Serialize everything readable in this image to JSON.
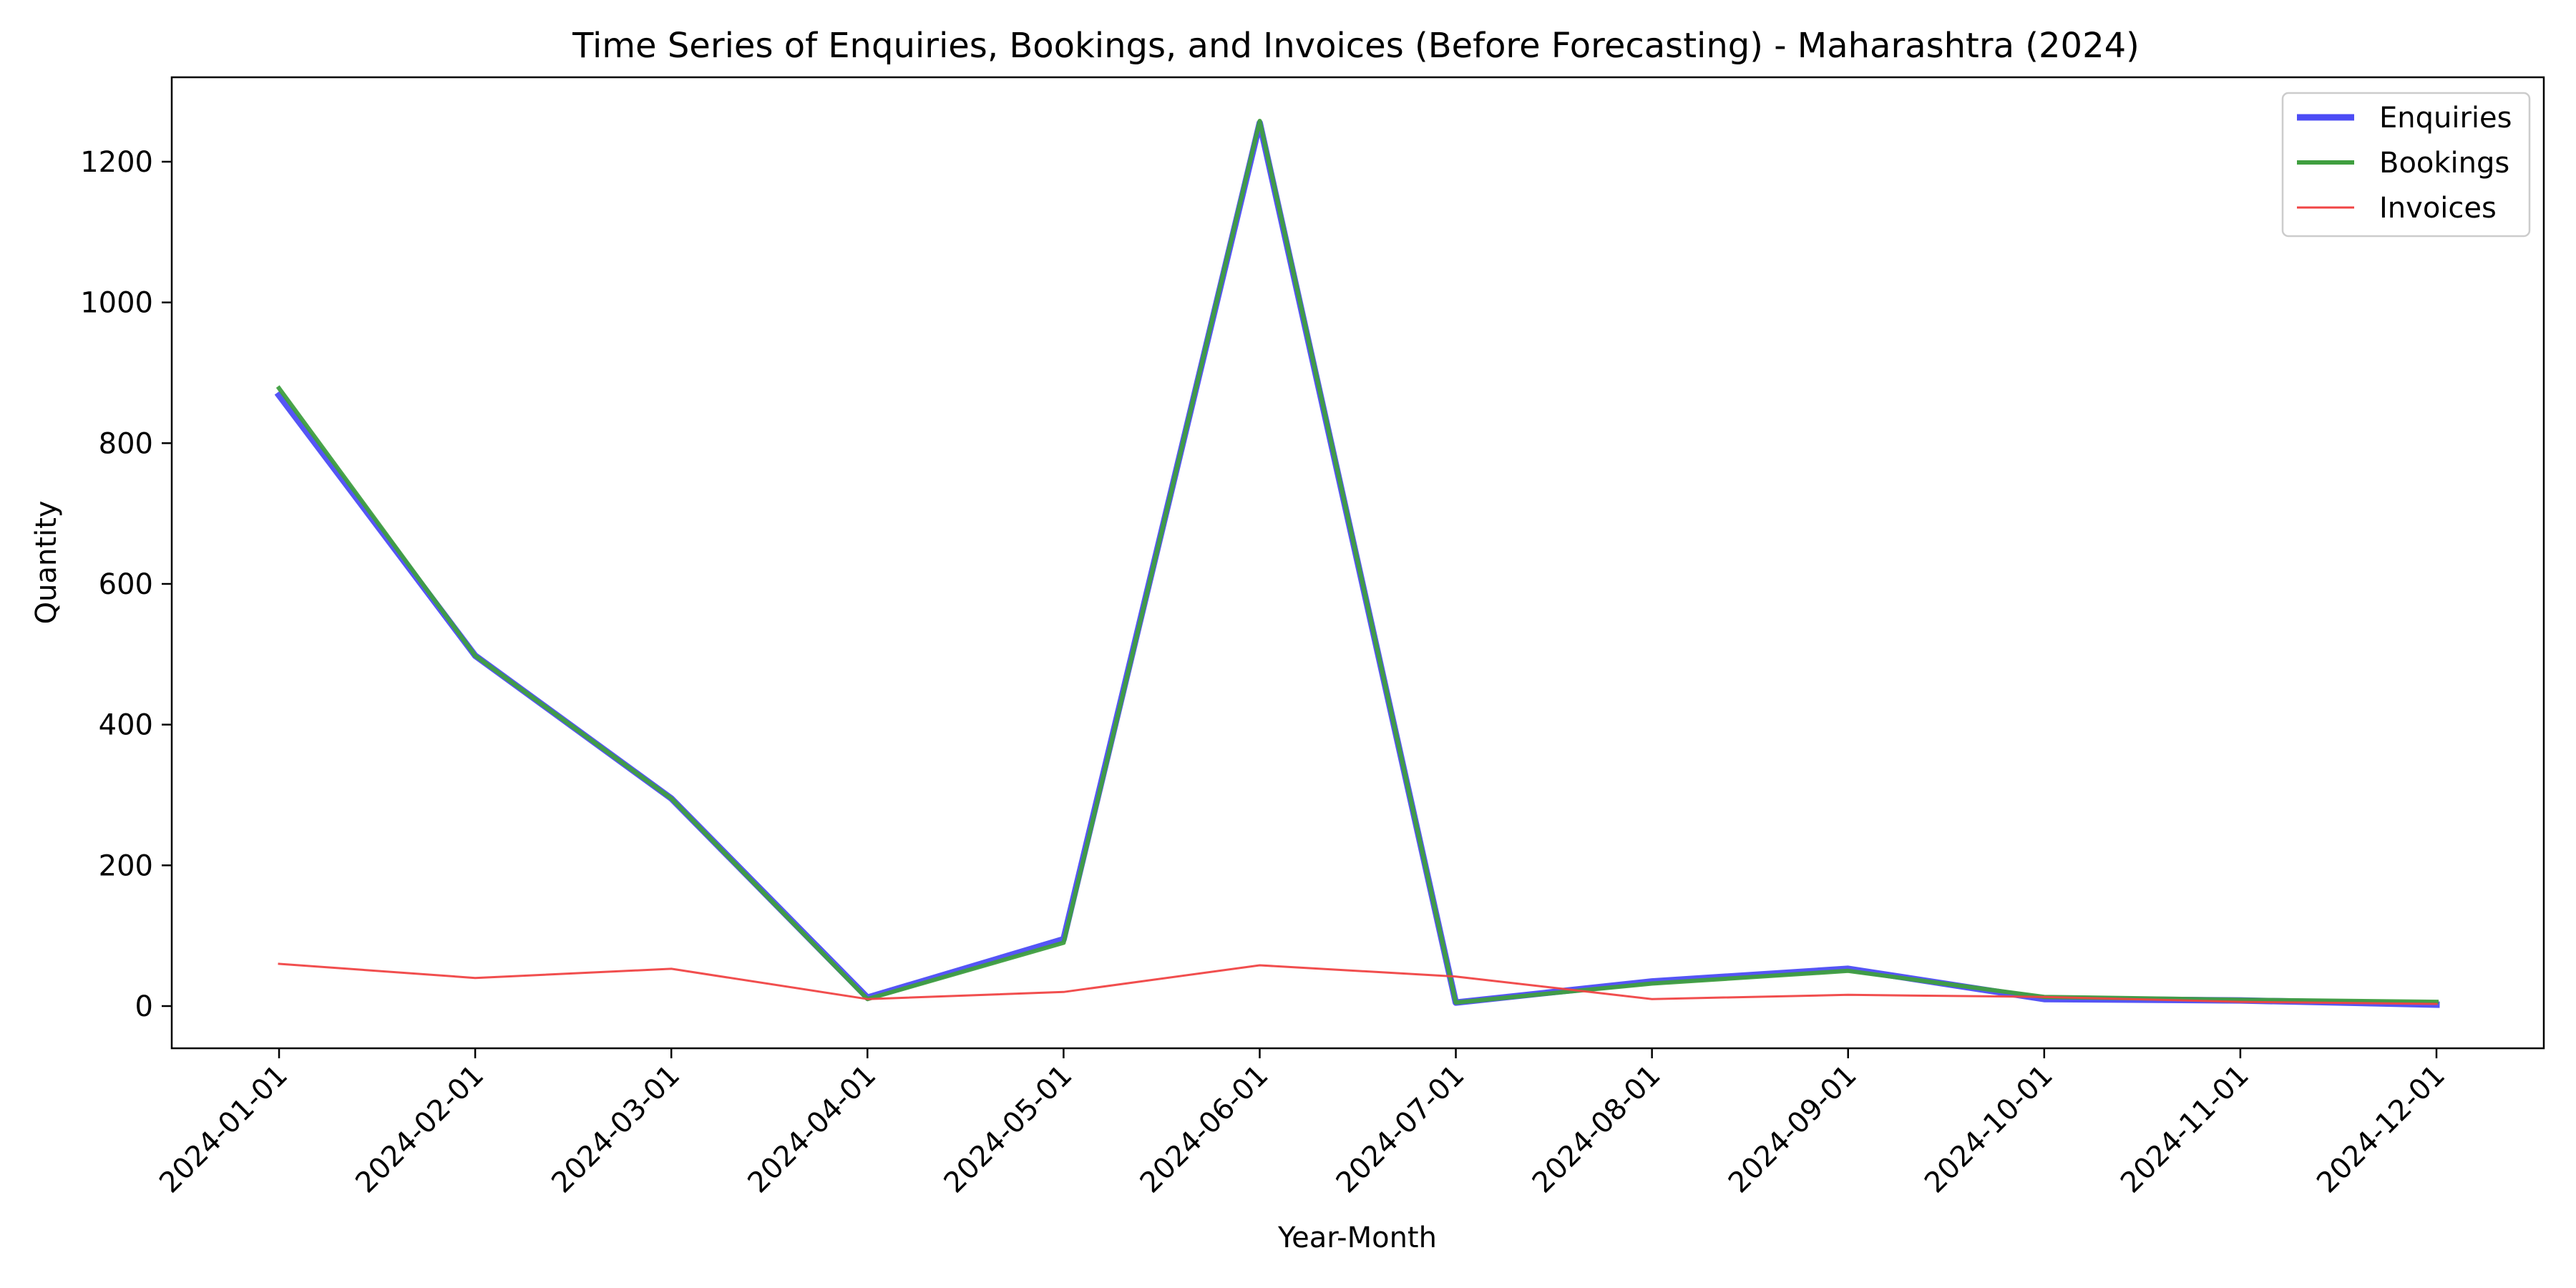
{
  "chart_data": {
    "type": "line",
    "title": "Time Series of Enquiries, Bookings, and Invoices (Before Forecasting) - Maharashtra (2024)",
    "xlabel": "Year-Month",
    "ylabel": "Quantity",
    "x": [
      "2024-01-01",
      "2024-02-01",
      "2024-03-01",
      "2024-04-01",
      "2024-05-01",
      "2024-06-01",
      "2024-07-01",
      "2024-08-01",
      "2024-09-01",
      "2024-10-01",
      "2024-11-01",
      "2024-12-01"
    ],
    "ylim": [
      -60,
      1320
    ],
    "yticks": [
      0,
      200,
      400,
      600,
      800,
      1000,
      1200
    ],
    "grid": false,
    "legend_position": "top-right",
    "series": [
      {
        "name": "Enquiries",
        "color": "#4c4cf5",
        "values": [
          868,
          498,
          295,
          12,
          95,
          1255,
          5,
          35,
          53,
          10,
          8,
          2
        ]
      },
      {
        "name": "Bookings",
        "color": "#3f9f3f",
        "values": [
          878,
          498,
          295,
          10,
          90,
          1258,
          5,
          32,
          50,
          13,
          9,
          6
        ]
      },
      {
        "name": "Invoices",
        "color": "#f04444",
        "values": [
          60,
          40,
          53,
          10,
          20,
          58,
          42,
          10,
          16,
          13,
          6,
          3
        ]
      }
    ]
  }
}
